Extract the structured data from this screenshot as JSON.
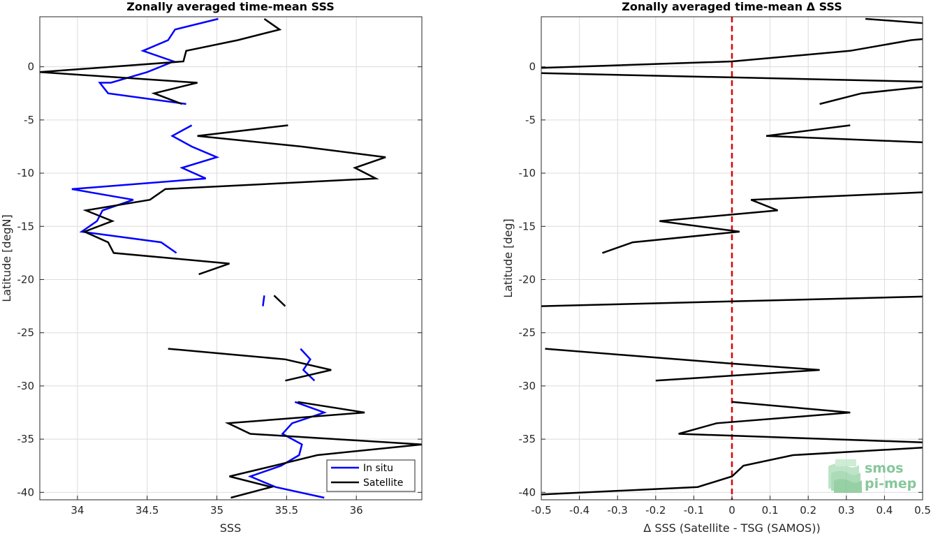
{
  "chart_data": [
    {
      "type": "line",
      "title": "Zonally averaged time-mean SSS",
      "xlabel": "SSS",
      "ylabel": "Latitude [degN]",
      "xlim": [
        33.73,
        36.47
      ],
      "ylim": [
        -40.7,
        4.7
      ],
      "xticks": [
        34,
        34.5,
        35,
        35.5,
        36
      ],
      "xtick_labels": [
        "34",
        "34.5",
        "35",
        "35.5",
        "36"
      ],
      "yticks": [
        0,
        -5,
        -10,
        -15,
        -20,
        -25,
        -30,
        -35,
        -40
      ],
      "ytick_labels": [
        "0",
        "-5",
        "-10",
        "-15",
        "-20",
        "-25",
        "-30",
        "-35",
        "-40"
      ],
      "grid": true,
      "legend_position": "bottom-right",
      "series": [
        {
          "name": "In situ",
          "color": "#0000ff",
          "segments": [
            [
              [
                35.01,
                4.5
              ],
              [
                34.7,
                3.5
              ],
              [
                34.65,
                2.5
              ],
              [
                34.47,
                1.5
              ],
              [
                34.69,
                0.5
              ],
              [
                34.5,
                -0.5
              ],
              [
                34.24,
                -1.5
              ],
              [
                34.16,
                -1.5
              ],
              [
                34.22,
                -2.5
              ],
              [
                34.78,
                -3.5
              ]
            ],
            [
              [
                34.82,
                -5.5
              ],
              [
                34.68,
                -6.5
              ],
              [
                34.82,
                -7.5
              ],
              [
                35.0,
                -8.5
              ],
              [
                34.75,
                -9.5
              ],
              [
                34.92,
                -10.5
              ],
              [
                33.96,
                -11.5
              ],
              [
                34.4,
                -12.5
              ],
              [
                34.18,
                -13.5
              ],
              [
                34.14,
                -14.5
              ],
              [
                34.03,
                -15.5
              ],
              [
                34.6,
                -16.5
              ],
              [
                34.71,
                -17.5
              ]
            ],
            [
              [
                35.33,
                -22.5
              ],
              [
                35.34,
                -21.5
              ]
            ],
            [
              [
                35.6,
                -26.5
              ],
              [
                35.67,
                -27.5
              ],
              [
                35.62,
                -28.5
              ],
              [
                35.7,
                -29.5
              ]
            ],
            [
              [
                35.56,
                -31.5
              ],
              [
                35.77,
                -32.5
              ],
              [
                35.54,
                -33.5
              ],
              [
                35.47,
                -34.5
              ],
              [
                35.61,
                -35.5
              ],
              [
                35.59,
                -36.5
              ],
              [
                35.46,
                -37.5
              ],
              [
                35.24,
                -38.5
              ],
              [
                35.42,
                -39.5
              ],
              [
                35.77,
                -40.5
              ]
            ]
          ]
        },
        {
          "name": "Satellite",
          "color": "#000000",
          "segments": [
            [
              [
                35.34,
                4.5
              ],
              [
                35.45,
                3.5
              ],
              [
                35.15,
                2.5
              ],
              [
                34.78,
                1.5
              ],
              [
                34.76,
                0.5
              ],
              [
                33.73,
                -0.5
              ],
              [
                34.86,
                -1.5
              ],
              [
                34.55,
                -2.5
              ],
              [
                34.75,
                -3.5
              ]
            ],
            [
              [
                35.51,
                -5.5
              ],
              [
                34.86,
                -6.5
              ],
              [
                35.61,
                -7.5
              ],
              [
                36.21,
                -8.5
              ],
              [
                35.99,
                -9.5
              ],
              [
                36.14,
                -10.5
              ],
              [
                34.63,
                -11.5
              ],
              [
                34.52,
                -12.5
              ],
              [
                34.06,
                -13.5
              ],
              [
                34.25,
                -14.5
              ],
              [
                34.05,
                -15.5
              ],
              [
                34.22,
                -16.5
              ],
              [
                34.26,
                -17.5
              ],
              [
                35.09,
                -18.5
              ],
              [
                34.87,
                -19.5
              ]
            ],
            [
              [
                35.41,
                -21.5
              ],
              [
                35.49,
                -22.5
              ]
            ],
            [
              [
                34.65,
                -26.5
              ],
              [
                35.49,
                -27.5
              ],
              [
                35.82,
                -28.5
              ],
              [
                35.49,
                -29.5
              ]
            ],
            [
              [
                35.58,
                -31.5
              ],
              [
                36.06,
                -32.5
              ],
              [
                35.08,
                -33.5
              ],
              [
                35.24,
                -34.5
              ],
              [
                36.47,
                -35.5
              ],
              [
                35.72,
                -36.5
              ],
              [
                35.41,
                -37.5
              ],
              [
                35.09,
                -38.5
              ],
              [
                35.39,
                -39.5
              ],
              [
                35.1,
                -40.5
              ]
            ]
          ]
        }
      ]
    },
    {
      "type": "line",
      "title": "Zonally averaged time-mean Δ SSS",
      "xlabel": "Δ SSS (Satellite - TSG (SAMOS))",
      "ylabel": "Latitude [deg]",
      "xlim": [
        -0.5,
        0.5
      ],
      "ylim": [
        -40.7,
        4.7
      ],
      "xticks": [
        -0.5,
        -0.4,
        -0.3,
        -0.2,
        -0.1,
        0,
        0.1,
        0.2,
        0.3,
        0.4,
        0.5
      ],
      "xtick_labels": [
        "-0.5",
        "-0.4",
        "-0.3",
        "-0.2",
        "-0.1",
        "0",
        "0.1",
        "0.2",
        "0.3",
        "0.4",
        "0.5"
      ],
      "yticks": [
        0,
        -5,
        -10,
        -15,
        -20,
        -25,
        -30,
        -35,
        -40
      ],
      "ytick_labels": [
        "0",
        "-5",
        "-10",
        "-15",
        "-20",
        "-25",
        "-30",
        "-35",
        "-40"
      ],
      "grid": true,
      "reference_line": {
        "x": 0,
        "color": "#dd0000",
        "style": "dashed"
      },
      "series": [
        {
          "name": "",
          "color": "#000000",
          "segments": [
            [
              [
                0.35,
                4.5
              ],
              [
                0.5,
                4.1
              ]
            ],
            [
              [
                0.5,
                2.6
              ],
              [
                0.47,
                2.5
              ],
              [
                0.31,
                1.5
              ],
              [
                0.0,
                0.5
              ],
              [
                -0.5,
                -0.1
              ]
            ],
            [
              [
                -0.5,
                -0.6
              ],
              [
                0.5,
                -1.4
              ]
            ],
            [
              [
                0.5,
                -1.9
              ],
              [
                0.34,
                -2.5
              ],
              [
                0.23,
                -3.5
              ]
            ],
            [
              [
                0.31,
                -5.5
              ],
              [
                0.09,
                -6.5
              ],
              [
                0.5,
                -7.1
              ]
            ],
            [
              [
                0.5,
                -11.8
              ],
              [
                0.05,
                -12.5
              ],
              [
                0.12,
                -13.5
              ],
              [
                -0.19,
                -14.5
              ],
              [
                0.02,
                -15.5
              ],
              [
                -0.26,
                -16.5
              ],
              [
                -0.34,
                -17.5
              ]
            ],
            [
              [
                0.5,
                -21.6
              ],
              [
                -0.5,
                -22.5
              ]
            ],
            [
              [
                -0.49,
                -26.5
              ],
              [
                0.0,
                -27.9
              ],
              [
                0.23,
                -28.5
              ],
              [
                -0.2,
                -29.5
              ]
            ],
            [
              [
                0.0,
                -31.5
              ],
              [
                0.31,
                -32.5
              ],
              [
                -0.04,
                -33.5
              ],
              [
                -0.14,
                -34.5
              ],
              [
                0.5,
                -35.3
              ]
            ],
            [
              [
                0.5,
                -35.8
              ],
              [
                0.16,
                -36.5
              ],
              [
                0.03,
                -37.5
              ],
              [
                0.0,
                -38.5
              ],
              [
                -0.09,
                -39.5
              ],
              [
                -0.5,
                -40.2
              ]
            ]
          ]
        }
      ]
    }
  ],
  "legend": {
    "entries": [
      "In situ",
      "Satellite"
    ]
  },
  "logo": {
    "line1": "smos",
    "line2": "pi-mep",
    "color": "#86c79a"
  }
}
